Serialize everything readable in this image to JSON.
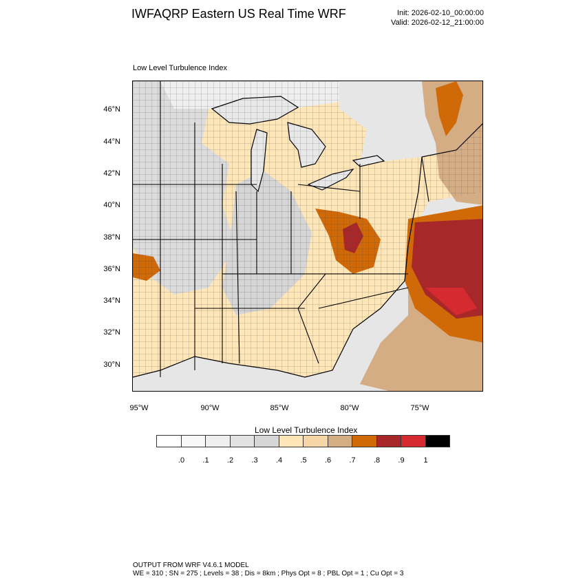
{
  "header": {
    "title": "IWFAQRP Eastern US Real Time WRF",
    "init": "Init: 2026-02-10_00:00:00",
    "valid": "Valid: 2026-02-12_21:00:00"
  },
  "map": {
    "subtitle": "Low Level Turbulence Index",
    "lat_labels": [
      "46°N",
      "44°N",
      "42°N",
      "40°N",
      "38°N",
      "36°N",
      "34°N",
      "32°N",
      "30°N"
    ],
    "lon_labels": [
      "95°W",
      "90°W",
      "85°W",
      "80°W",
      "75°W"
    ]
  },
  "colorbar": {
    "title": "Low Level Turbulence Index",
    "colors": [
      "#ffffff",
      "#f8f8f8",
      "#efefef",
      "#e2e2e2",
      "#d6d6d6",
      "#ffe6b8",
      "#f6d6a6",
      "#d4ad84",
      "#d06a08",
      "#a8282a",
      "#d42a30",
      "#000000"
    ],
    "labels": [
      ".0",
      ".1",
      ".2",
      ".3",
      ".4",
      ".5",
      ".6",
      ".7",
      ".8",
      ".9",
      "1"
    ]
  },
  "footer": {
    "line1": "OUTPUT FROM WRF V4.6.1 MODEL",
    "line2": "WE = 310 ; SN = 275 ; Levels = 38 ; Dis = 8km ; Phys Opt = 8 ; PBL Opt = 1 ; Cu Opt = 3"
  }
}
